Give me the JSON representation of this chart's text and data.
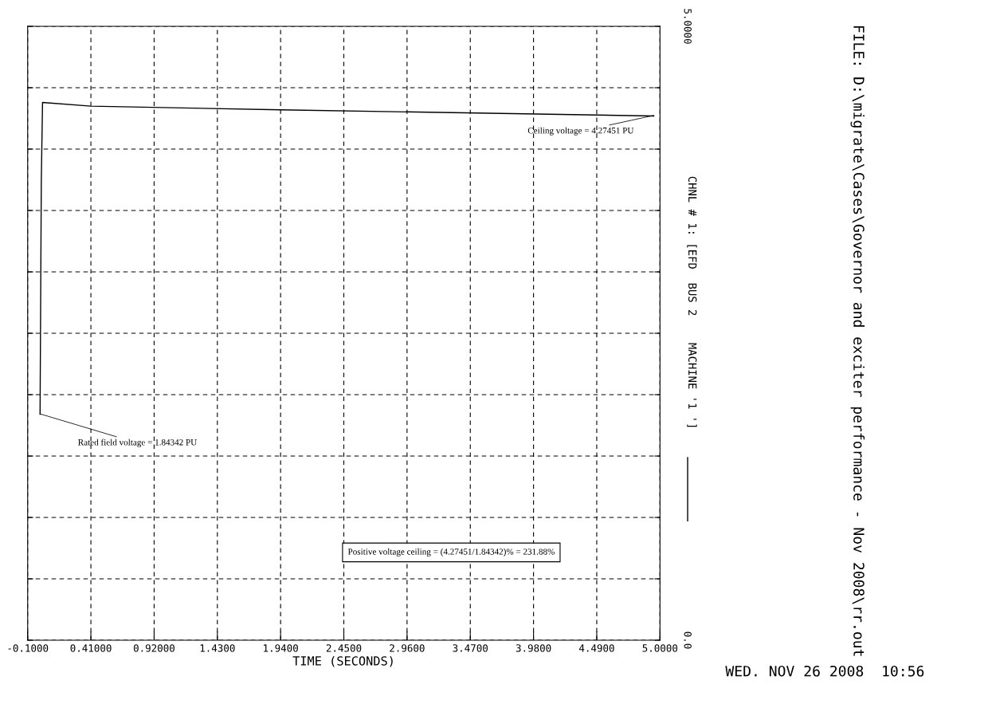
{
  "chart_data": {
    "type": "line",
    "title": "FILE: D:\\migrate\\Cases\\Governor and exciter performance - Nov 2008\\rr.out",
    "xlabel": "TIME (SECONDS)",
    "series": [
      {
        "name": "CHNL # 1: [EFD  BUS 2    MACHINE '1 ']",
        "color": "#000000",
        "x": [
          0.0,
          0.01,
          0.02,
          0.41,
          1.94,
          4.95
        ],
        "values": [
          1.84,
          3.74,
          4.38,
          4.35,
          4.32,
          4.27
        ]
      }
    ],
    "xlim": [
      -0.1,
      5.0
    ],
    "xticks": [
      {
        "value": -0.1,
        "label": "-0.1000"
      },
      {
        "value": 0.41,
        "label": "0.41000"
      },
      {
        "value": 0.92,
        "label": "0.92000"
      },
      {
        "value": 1.43,
        "label": "1.4300"
      },
      {
        "value": 1.94,
        "label": "1.9400"
      },
      {
        "value": 2.45,
        "label": "2.4500"
      },
      {
        "value": 2.96,
        "label": "2.9600"
      },
      {
        "value": 3.47,
        "label": "3.4700"
      },
      {
        "value": 3.98,
        "label": "3.9800"
      },
      {
        "value": 4.49,
        "label": "4.4900"
      },
      {
        "value": 5.0,
        "label": "5.0000"
      }
    ],
    "ylim": [
      0,
      5
    ],
    "yticks": [
      {
        "value": 0,
        "label": "0.0"
      },
      {
        "value": 0.5,
        "label": null
      },
      {
        "value": 1,
        "label": null
      },
      {
        "value": 1.5,
        "label": null
      },
      {
        "value": 2,
        "label": null
      },
      {
        "value": 2.5,
        "label": null
      },
      {
        "value": 3,
        "label": null
      },
      {
        "value": 3.5,
        "label": null
      },
      {
        "value": 4,
        "label": null
      },
      {
        "value": 4.5,
        "label": null
      },
      {
        "value": 5,
        "label": "5.0000"
      }
    ],
    "annotations": [
      {
        "text": "Rated field voltage = 1.84342 PU",
        "x": 0.0,
        "y": 1.84342
      },
      {
        "text": "Ceiling voltage = 4.27451 PU",
        "x": 4.95,
        "y": 4.27451
      },
      "Positive voltage ceiling = (4.27451/1.84342)% = 231.88%",
      "WED. NOV 26 2008  10:56"
    ],
    "grid": true,
    "legend": "right",
    "line_style": "solid",
    "marker": "none"
  }
}
